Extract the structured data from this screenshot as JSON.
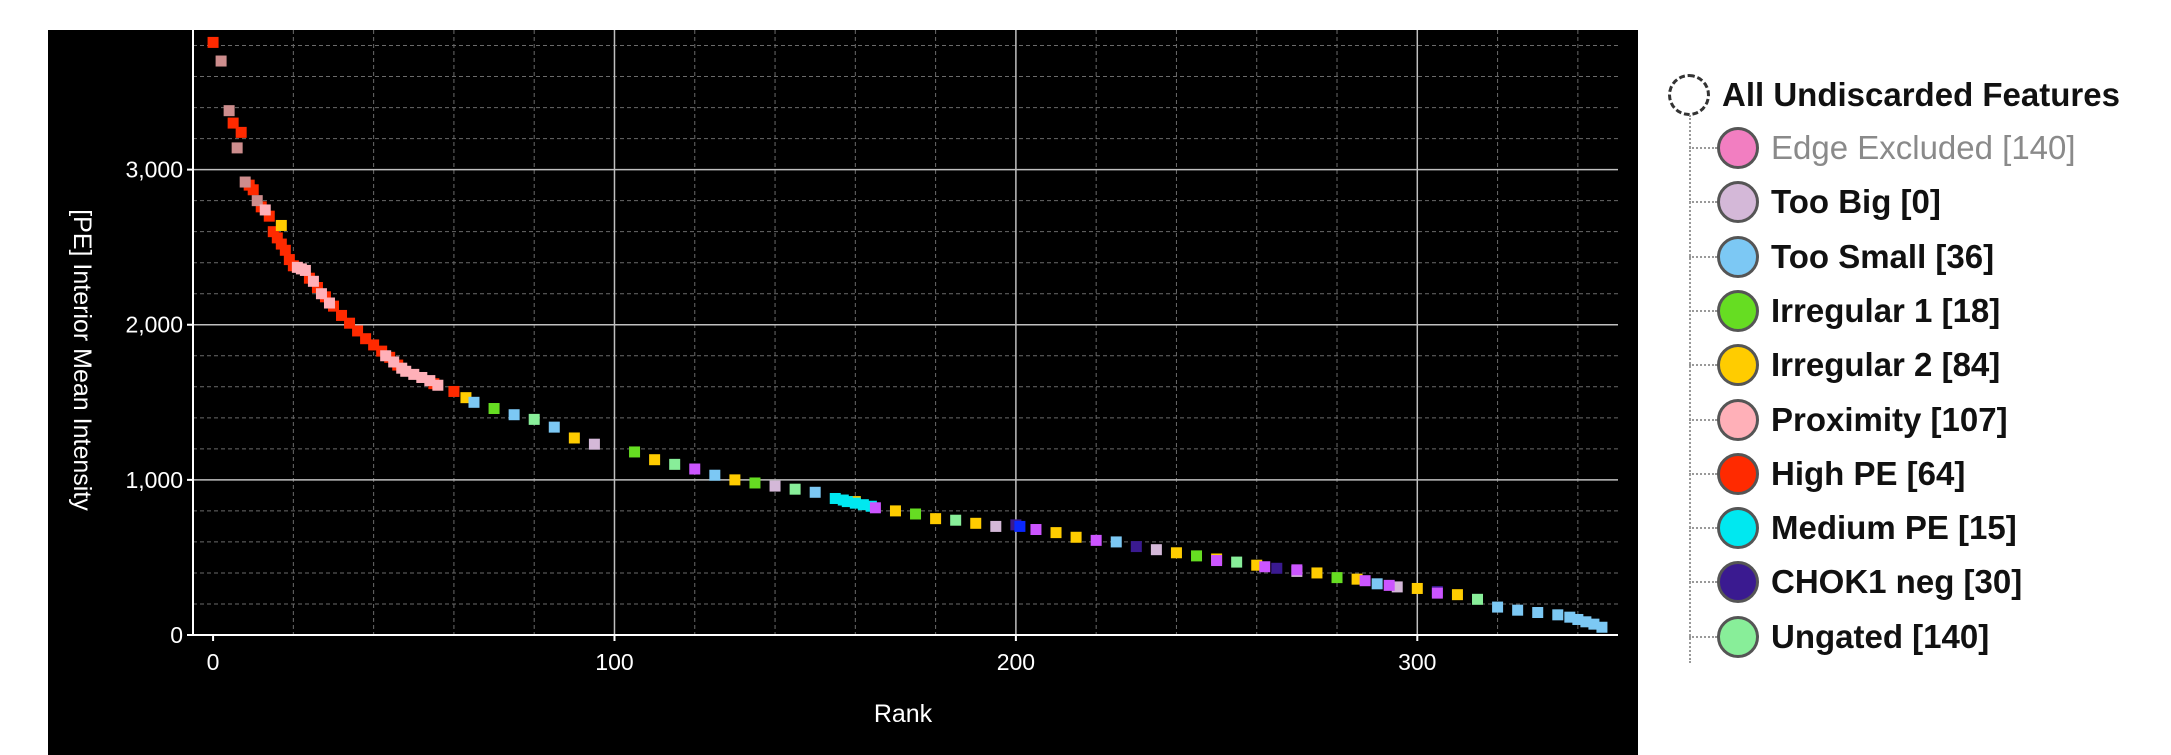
{
  "chart_data": {
    "type": "scatter",
    "title": "",
    "xlabel": "Rank",
    "ylabel": "[PE] Interior Mean Intensity",
    "xlim": [
      -5,
      350
    ],
    "ylim": [
      0,
      3900
    ],
    "x_ticks": [
      0,
      100,
      200,
      300
    ],
    "x_tick_labels": [
      "0",
      "100",
      "200",
      "300"
    ],
    "y_ticks": [
      0,
      1000,
      2000,
      3000
    ],
    "y_tick_labels": [
      "0",
      "1,000",
      "2,000",
      "3,000"
    ],
    "grid": true,
    "legend": "right",
    "series": [
      {
        "name": "High PE [64]",
        "color": "#ff2a00",
        "x": [
          0,
          5,
          7,
          9,
          10,
          12,
          14,
          15,
          16,
          17,
          18,
          19,
          20,
          24,
          26,
          28,
          30,
          32,
          34,
          36,
          38,
          40,
          42,
          44,
          46,
          55,
          60
        ],
        "y": [
          3820,
          3300,
          3240,
          2900,
          2870,
          2760,
          2700,
          2600,
          2560,
          2520,
          2480,
          2420,
          2380,
          2300,
          2240,
          2180,
          2120,
          2060,
          2010,
          1960,
          1910,
          1870,
          1830,
          1790,
          1740,
          1620,
          1570
        ]
      },
      {
        "name": "Edge Excluded [140]",
        "color": "#cd8d8d",
        "x": [
          2,
          4,
          6,
          8,
          11
        ],
        "y": [
          3700,
          3380,
          3140,
          2920,
          2800
        ]
      },
      {
        "name": "Proximity [107]",
        "color": "#ffb0b8",
        "x": [
          13,
          21,
          22,
          23,
          25,
          27,
          29,
          43,
          45,
          47,
          48,
          50,
          52,
          54,
          56
        ],
        "y": [
          2740,
          2370,
          2360,
          2350,
          2280,
          2200,
          2140,
          1800,
          1760,
          1720,
          1700,
          1680,
          1660,
          1640,
          1610
        ],
        "note_x_ext": []
      },
      {
        "name": "Irregular 2 [84]",
        "color": "#ffcc00",
        "x": [
          17,
          63,
          90,
          110,
          130,
          160,
          170,
          180,
          190,
          210,
          215,
          240,
          250,
          260,
          275,
          285,
          300,
          310
        ],
        "y": [
          2640,
          1530,
          1270,
          1130,
          1000,
          860,
          800,
          750,
          720,
          660,
          630,
          530,
          490,
          450,
          400,
          360,
          300,
          260
        ]
      },
      {
        "name": "Too Small [36]",
        "color": "#7cc8f4",
        "x": [
          65,
          75,
          85,
          125,
          150,
          225,
          290,
          320,
          325,
          330,
          335,
          338,
          340,
          342,
          344,
          346
        ],
        "y": [
          1500,
          1420,
          1340,
          1030,
          920,
          600,
          330,
          180,
          160,
          145,
          130,
          115,
          100,
          85,
          70,
          50
        ]
      },
      {
        "name": "Irregular 1 [18]",
        "color": "#66dd22",
        "x": [
          70,
          105,
          135,
          175,
          245,
          280
        ],
        "y": [
          1460,
          1180,
          980,
          780,
          510,
          370
        ]
      },
      {
        "name": "Medium PE [15]",
        "color": "#00e8f0",
        "x": [
          155,
          157,
          158,
          160,
          162,
          164
        ],
        "y": [
          880,
          870,
          860,
          850,
          840,
          830
        ]
      },
      {
        "name": "CHOK1 neg [30]",
        "color": "#3a1a90",
        "x": [
          200,
          230,
          265,
          305
        ],
        "y": [
          710,
          570,
          430,
          280
        ]
      },
      {
        "name": "Ungated [140]",
        "color": "#88ee99",
        "x": [
          80,
          115,
          145,
          185,
          255,
          315
        ],
        "y": [
          1390,
          1100,
          940,
          740,
          470,
          230
        ]
      },
      {
        "name": "Too Big [0]",
        "color": "#d4b8d8",
        "x": [
          95,
          140,
          195,
          235,
          270,
          295
        ],
        "y": [
          1230,
          960,
          700,
          550,
          410,
          310
        ]
      }
    ],
    "extra_marks": [
      {
        "color": "#cc55ff",
        "x": [
          120,
          165,
          205,
          220,
          250,
          262,
          270,
          287,
          293,
          305
        ],
        "y": [
          1070,
          820,
          680,
          610,
          480,
          440,
          420,
          350,
          320,
          270
        ]
      },
      {
        "color": "#0a28ff",
        "x": [
          201
        ],
        "y": [
          700
        ]
      }
    ]
  },
  "legend": {
    "root_label": "All Undiscarded Features",
    "items": [
      {
        "label": "Edge Excluded [140]",
        "color": "#f27ec1",
        "muted": true
      },
      {
        "label": "Too Big [0]",
        "color": "#d4b8d8",
        "muted": false
      },
      {
        "label": "Too Small [36]",
        "color": "#7cc8f4",
        "muted": false
      },
      {
        "label": "Irregular 1 [18]",
        "color": "#66dd22",
        "muted": false
      },
      {
        "label": "Irregular 2 [84]",
        "color": "#ffcc00",
        "muted": false
      },
      {
        "label": "Proximity [107]",
        "color": "#ffb0b8",
        "muted": false
      },
      {
        "label": "High PE [64]",
        "color": "#ff2a00",
        "muted": false
      },
      {
        "label": "Medium PE [15]",
        "color": "#00e8f0",
        "muted": false
      },
      {
        "label": "CHOK1 neg [30]",
        "color": "#3a1a90",
        "muted": false
      },
      {
        "label": "Ungated [140]",
        "color": "#88ee99",
        "muted": false
      }
    ]
  },
  "colors": {
    "plot_background": "#000000",
    "grid_major": "#bfbfbf",
    "grid_minor": "#6a6a6a",
    "text": "#ffffff"
  }
}
